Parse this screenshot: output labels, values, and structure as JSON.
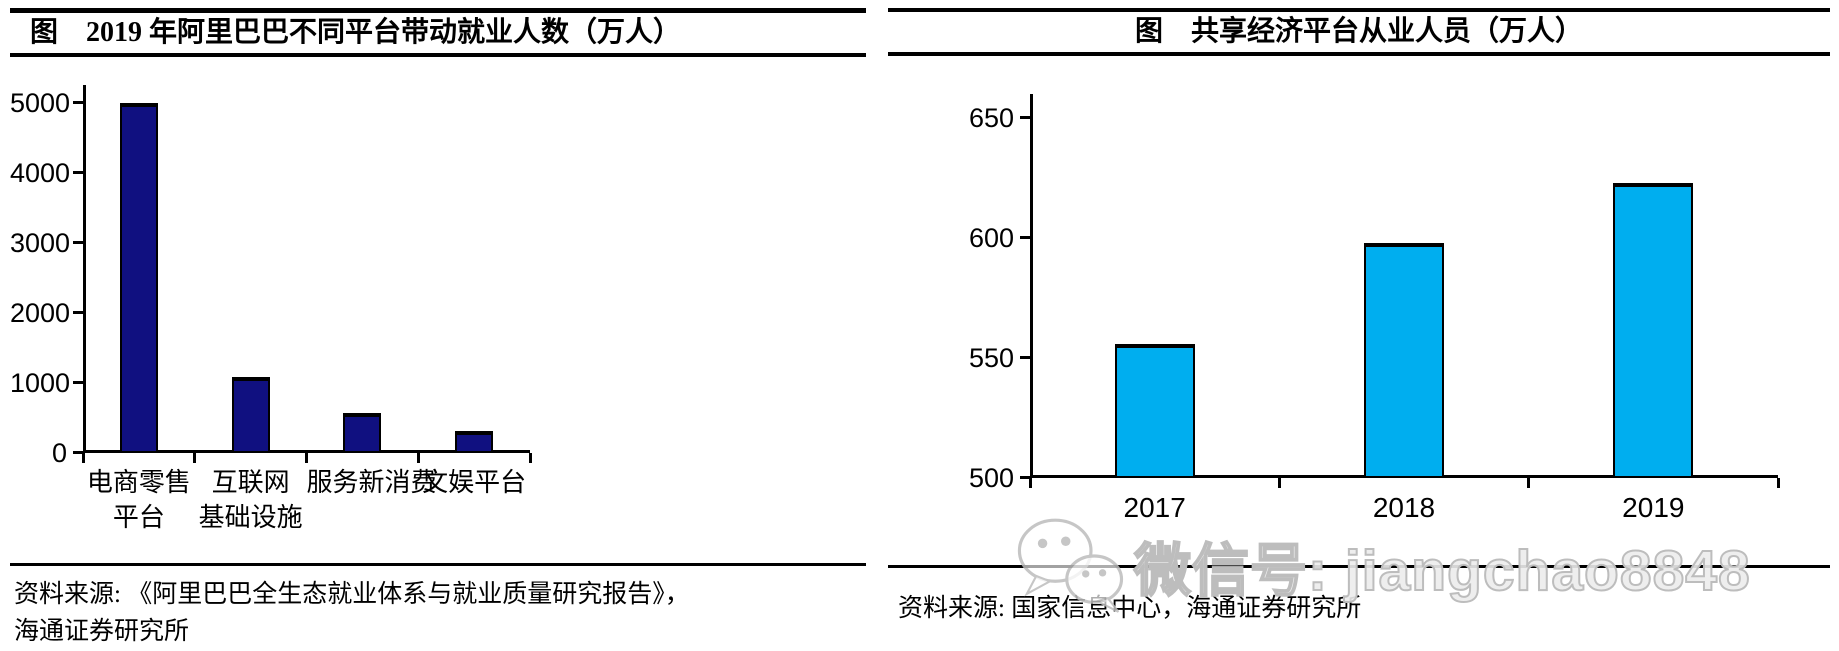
{
  "chart_data": [
    {
      "type": "bar",
      "title": "图　2019 年阿里巴巴不同平台带动就业人数（万人）",
      "categories": [
        "电商零售平台",
        "互联网基础设施",
        "服务新消费",
        "文娱平台"
      ],
      "category_label_lines": [
        [
          "电商零售",
          "平台"
        ],
        [
          "互联网",
          "基础设施"
        ],
        [
          "服务新消费"
        ],
        [
          "文娱平台"
        ]
      ],
      "values": [
        5000,
        1080,
        570,
        310
      ],
      "ylim": [
        0,
        5000
      ],
      "yticks": [
        0,
        1000,
        2000,
        3000,
        4000,
        5000
      ],
      "grid": false,
      "legend": "none",
      "bar_color": "#101080",
      "bar_border_color": "#000000",
      "source_lines": [
        "资料来源: 《阿里巴巴全生态就业体系与就业质量研究报告》，",
        "海通证券研究所"
      ]
    },
    {
      "type": "bar",
      "title": "图　共享经济平台从业人员（万人）",
      "categories": [
        "2017",
        "2018",
        "2019"
      ],
      "values": [
        556,
        598,
        623
      ],
      "ylim": [
        500,
        650
      ],
      "yticks": [
        500,
        550,
        600,
        650
      ],
      "grid": false,
      "legend": "none",
      "bar_color": "#00AEEF",
      "bar_border_color": "#000000",
      "source_lines": [
        "资料来源: 国家信息中心，海通证券研究所"
      ]
    }
  ],
  "watermark": {
    "icon": "wechat-icon",
    "text": "微信号: jiangchao8848"
  }
}
